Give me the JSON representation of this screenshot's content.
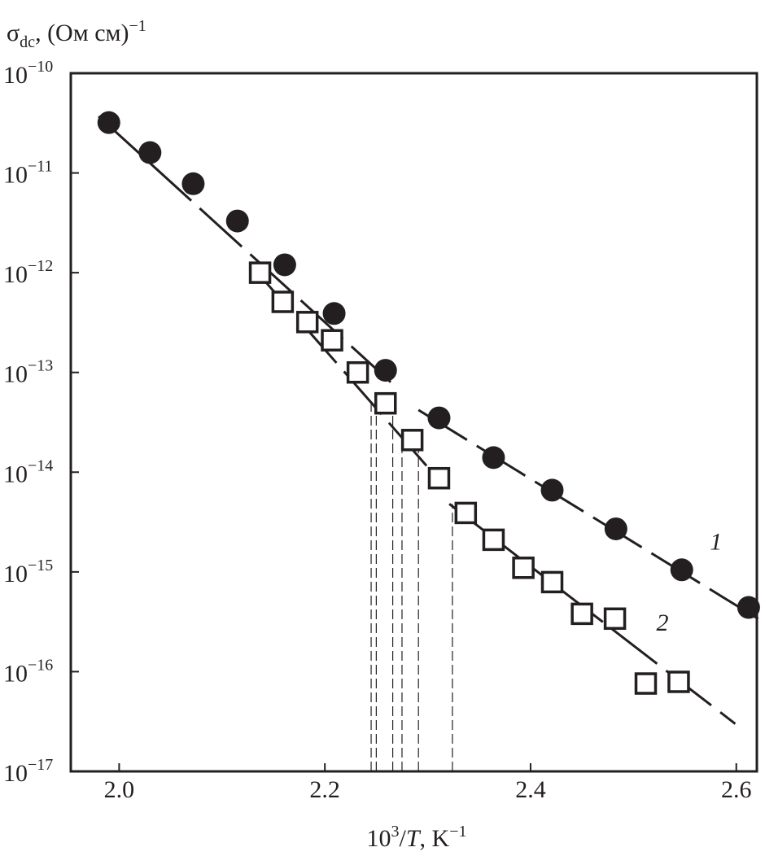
{
  "chart_data": {
    "type": "scatter",
    "y_label": {
      "symbol": "σ",
      "subscript": "dc",
      "text": ", (Ом см)",
      "superscript": "−1"
    },
    "x_label": {
      "base": "10",
      "superscript": "3",
      "slash": "/",
      "italic": "T",
      "text": ", K",
      "superscript2": "−1"
    },
    "xlim": [
      1.953,
      2.62
    ],
    "xticks": [
      {
        "value": 2.0,
        "label": "2.0"
      },
      {
        "value": 2.2,
        "label": "2.2"
      },
      {
        "value": 2.4,
        "label": "2.4"
      },
      {
        "value": 2.6,
        "label": "2.6"
      }
    ],
    "ylim": [
      1e-17,
      1e-10
    ],
    "y_log": true,
    "yticks": [
      {
        "value": 1e-10,
        "label": "10",
        "exponent": "−10"
      },
      {
        "value": 1e-11,
        "label": "10",
        "exponent": "−11"
      },
      {
        "value": 1e-12,
        "label": "10",
        "exponent": "−12"
      },
      {
        "value": 1e-13,
        "label": "10",
        "exponent": "−13"
      },
      {
        "value": 1e-14,
        "label": "10",
        "exponent": "−14"
      },
      {
        "value": 1e-15,
        "label": "10",
        "exponent": "−15"
      },
      {
        "value": 1e-16,
        "label": "10",
        "exponent": "−16"
      },
      {
        "value": 1e-17,
        "label": "10",
        "exponent": "−17"
      }
    ],
    "series": [
      {
        "name": "1",
        "marker": "circle",
        "color": "#231f20",
        "x": [
          1.99,
          2.03,
          2.072,
          2.115,
          2.161,
          2.209,
          2.259,
          2.311,
          2.364,
          2.421,
          2.483,
          2.547,
          2.612
        ],
        "values": [
          3.2e-11,
          1.6e-11,
          7.8e-12,
          3.3e-12,
          1.2e-12,
          3.9e-13,
          1.05e-13,
          3.5e-14,
          1.4e-14,
          6.6e-15,
          2.7e-15,
          1.05e-15,
          4.4e-16
        ],
        "fits": [
          {
            "x": [
              1.98,
              2.264
            ],
            "values": [
              3.7e-11,
              8e-14
            ]
          },
          {
            "x": [
              2.291,
              2.623
            ],
            "values": [
              4.2e-14,
              3.3e-16
            ]
          }
        ]
      },
      {
        "name": "2",
        "marker": "square",
        "color": "#231f20",
        "x": [
          2.137,
          2.159,
          2.183,
          2.207,
          2.232,
          2.259,
          2.285,
          2.311,
          2.337,
          2.364,
          2.393,
          2.421,
          2.45,
          2.482,
          2.512,
          2.544
        ],
        "values": [
          1e-12,
          5.1e-13,
          3.2e-13,
          2.1e-13,
          1e-13,
          4.9e-14,
          2.1e-14,
          8.7e-15,
          3.9e-15,
          2.1e-15,
          1.1e-15,
          7.9e-16,
          3.8e-16,
          3.4e-16,
          7.6e-17,
          7.9e-17
        ],
        "fits": [
          {
            "x": [
              2.131,
              2.318
            ],
            "values": [
              1.1e-12,
              6.9e-15
            ]
          },
          {
            "x": [
              2.321,
              2.599
            ],
            "values": [
              4.8e-15,
              3e-17
            ]
          }
        ]
      }
    ],
    "reference_lines": {
      "x": [
        2.245,
        2.25,
        2.266,
        2.275,
        2.291,
        2.324
      ],
      "values": [
        5e-14,
        5e-14,
        3.7e-14,
        2.8e-14,
        2e-14,
        4.8e-15
      ]
    }
  }
}
